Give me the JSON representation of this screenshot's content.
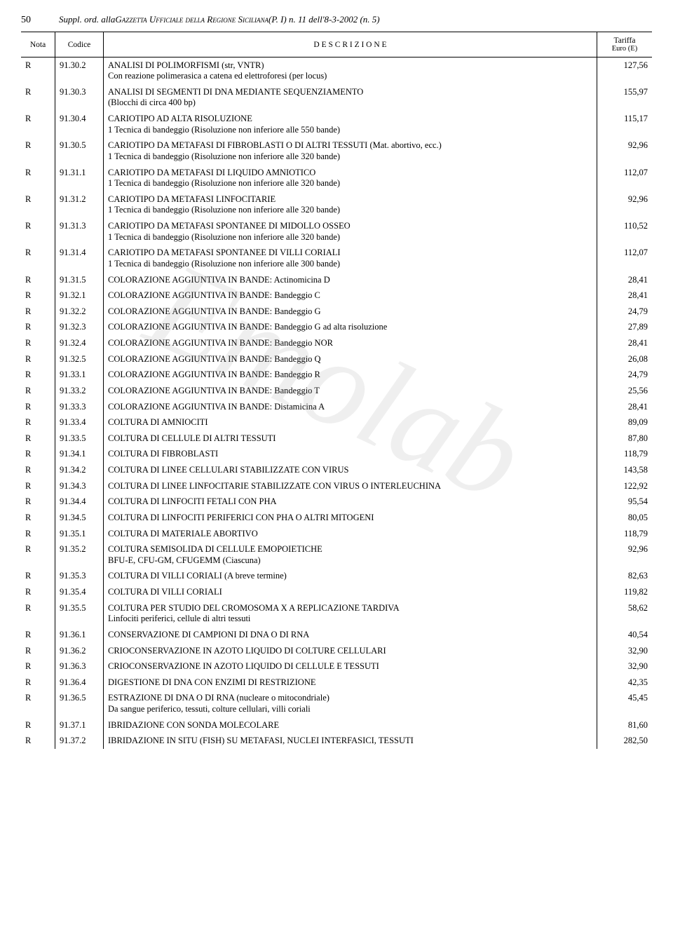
{
  "header": {
    "page_number": "50",
    "title_prefix": "Suppl. ord. alla ",
    "gazette": "Gazzetta Ufficiale della Regione Siciliana",
    "title_suffix": " (P. I) n. 11 dell'8-3-2002 (n. 5)"
  },
  "columns": {
    "nota": "Nota",
    "codice": "Codice",
    "descrizione": "D E S C R I Z I O N E",
    "tariffa_top": "Tariffa",
    "tariffa_bot": "Euro (E)"
  },
  "rows": [
    {
      "nota": "R",
      "codice": "91.30.2",
      "desc": "ANALISI DI POLIMORFISMI (str, VNTR)",
      "sub": "Con reazione polimerasica a catena ed elettroforesi (per locus)",
      "tariffa": "127,56"
    },
    {
      "nota": "R",
      "codice": "91.30.3",
      "desc": "ANALISI DI SEGMENTI DI DNA MEDIANTE SEQUENZIAMENTO",
      "sub": "(Blocchi di circa 400 bp)",
      "tariffa": "155,97"
    },
    {
      "nota": "R",
      "codice": "91.30.4",
      "desc": "CARIOTIPO AD ALTA RISOLUZIONE",
      "sub": "1 Tecnica di bandeggio (Risoluzione non inferiore alle 550 bande)",
      "tariffa": "115,17"
    },
    {
      "nota": "R",
      "codice": "91.30.5",
      "desc": "CARIOTIPO DA METAFASI DI FIBROBLASTI O DI ALTRI TESSUTI (Mat. abortivo, ecc.)",
      "sub": "1 Tecnica di bandeggio (Risoluzione non inferiore alle 320 bande)",
      "tariffa": "92,96"
    },
    {
      "nota": "R",
      "codice": "91.31.1",
      "desc": "CARIOTIPO DA METAFASI DI LIQUIDO AMNIOTICO",
      "sub": "1 Tecnica di bandeggio (Risoluzione non inferiore alle 320 bande)",
      "tariffa": "112,07"
    },
    {
      "nota": "R",
      "codice": "91.31.2",
      "desc": "CARIOTIPO DA METAFASI LINFOCITARIE",
      "sub": "1 Tecnica di bandeggio (Risoluzione non inferiore alle 320 bande)",
      "tariffa": "92,96"
    },
    {
      "nota": "R",
      "codice": "91.31.3",
      "desc": "CARIOTIPO DA METAFASI SPONTANEE DI MIDOLLO OSSEO",
      "sub": "1 Tecnica di bandeggio (Risoluzione non inferiore alle 320 bande)",
      "tariffa": "110,52"
    },
    {
      "nota": "R",
      "codice": "91.31.4",
      "desc": "CARIOTIPO DA METAFASI SPONTANEE DI VILLI CORIALI",
      "sub": "1 Tecnica di bandeggio (Risoluzione non inferiore alle 300 bande)",
      "tariffa": "112,07"
    },
    {
      "nota": "R",
      "codice": "91.31.5",
      "desc": "COLORAZIONE AGGIUNTIVA IN BANDE: Actinomicina D",
      "tariffa": "28,41"
    },
    {
      "nota": "R",
      "codice": "91.32.1",
      "desc": "COLORAZIONE AGGIUNTIVA IN BANDE: Bandeggio C",
      "tariffa": "28,41"
    },
    {
      "nota": "R",
      "codice": "91.32.2",
      "desc": "COLORAZIONE AGGIUNTIVA IN BANDE: Bandeggio G",
      "tariffa": "24,79"
    },
    {
      "nota": "R",
      "codice": "91.32.3",
      "desc": "COLORAZIONE AGGIUNTIVA IN BANDE: Bandeggio G ad alta risoluzione",
      "tariffa": "27,89"
    },
    {
      "nota": "R",
      "codice": "91.32.4",
      "desc": "COLORAZIONE AGGIUNTIVA IN BANDE: Bandeggio NOR",
      "tariffa": "28,41"
    },
    {
      "nota": "R",
      "codice": "91.32.5",
      "desc": "COLORAZIONE AGGIUNTIVA IN BANDE: Bandeggio Q",
      "tariffa": "26,08"
    },
    {
      "nota": "R",
      "codice": "91.33.1",
      "desc": "COLORAZIONE AGGIUNTIVA IN BANDE: Bandeggio R",
      "tariffa": "24,79"
    },
    {
      "nota": "R",
      "codice": "91.33.2",
      "desc": "COLORAZIONE AGGIUNTIVA IN BANDE: Bandeggio T",
      "tariffa": "25,56"
    },
    {
      "nota": "R",
      "codice": "91.33.3",
      "desc": "COLORAZIONE AGGIUNTIVA IN BANDE: Distamicina A",
      "tariffa": "28,41"
    },
    {
      "nota": "R",
      "codice": "91.33.4",
      "desc": "COLTURA DI AMNIOCITI",
      "tariffa": "89,09"
    },
    {
      "nota": "R",
      "codice": "91.33.5",
      "desc": "COLTURA DI CELLULE DI ALTRI TESSUTI",
      "tariffa": "87,80"
    },
    {
      "nota": "R",
      "codice": "91.34.1",
      "desc": "COLTURA DI FIBROBLASTI",
      "tariffa": "118,79"
    },
    {
      "nota": "R",
      "codice": "91.34.2",
      "desc": "COLTURA DI LINEE CELLULARI STABILIZZATE CON VIRUS",
      "tariffa": "143,58"
    },
    {
      "nota": "R",
      "codice": "91.34.3",
      "desc": "COLTURA DI LINEE LINFOCITARIE STABILIZZATE CON VIRUS O INTERLEUCHINA",
      "tariffa": "122,92"
    },
    {
      "nota": "R",
      "codice": "91.34.4",
      "desc": "COLTURA DI LINFOCITI FETALI CON PHA",
      "tariffa": "95,54"
    },
    {
      "nota": "R",
      "codice": "91.34.5",
      "desc": "COLTURA DI LINFOCITI PERIFERICI CON PHA O ALTRI MITOGENI",
      "tariffa": "80,05"
    },
    {
      "nota": "R",
      "codice": "91.35.1",
      "desc": "COLTURA DI MATERIALE ABORTIVO",
      "tariffa": "118,79"
    },
    {
      "nota": "R",
      "codice": "91.35.2",
      "desc": "COLTURA SEMISOLIDA DI CELLULE EMOPOIETICHE",
      "sub": "BFU-E, CFU-GM, CFUGEMM (Ciascuna)",
      "tariffa": "92,96"
    },
    {
      "nota": "R",
      "codice": "91.35.3",
      "desc": "COLTURA DI VILLI CORIALI (A breve termine)",
      "tariffa": "82,63"
    },
    {
      "nota": "R",
      "codice": "91.35.4",
      "desc": "COLTURA DI VILLI CORIALI",
      "tariffa": "119,82"
    },
    {
      "nota": "R",
      "codice": "91.35.5",
      "desc": "COLTURA PER STUDIO DEL CROMOSOMA X A REPLICAZIONE TARDIVA",
      "sub": "Linfociti periferici, cellule di altri tessuti",
      "tariffa": "58,62"
    },
    {
      "nota": "R",
      "codice": "91.36.1",
      "desc": "CONSERVAZIONE DI CAMPIONI DI DNA O DI RNA",
      "tariffa": "40,54"
    },
    {
      "nota": "R",
      "codice": "91.36.2",
      "desc": "CRIOCONSERVAZIONE IN AZOTO LIQUIDO DI COLTURE CELLULARI",
      "tariffa": "32,90"
    },
    {
      "nota": "R",
      "codice": "91.36.3",
      "desc": "CRIOCONSERVAZIONE IN AZOTO LIQUIDO DI CELLULE E TESSUTI",
      "tariffa": "32,90"
    },
    {
      "nota": "R",
      "codice": "91.36.4",
      "desc": "DIGESTIONE DI DNA CON ENZIMI DI RESTRIZIONE",
      "tariffa": "42,35"
    },
    {
      "nota": "R",
      "codice": "91.36.5",
      "desc": "ESTRAZIONE DI DNA O DI RNA (nucleare o mitocondriale)",
      "sub": "Da sangue periferico, tessuti, colture cellulari, villi coriali",
      "tariffa": "45,45"
    },
    {
      "nota": "R",
      "codice": "91.37.1",
      "desc": "IBRIDAZIONE CON SONDA MOLECOLARE",
      "tariffa": "81,60"
    },
    {
      "nota": "R",
      "codice": "91.37.2",
      "desc": "IBRIDAZIONE IN SITU (FISH) SU METAFASI, NUCLEI INTERFASICI, TESSUTI",
      "tariffa": "282,50"
    }
  ],
  "watermark": "Emolab"
}
